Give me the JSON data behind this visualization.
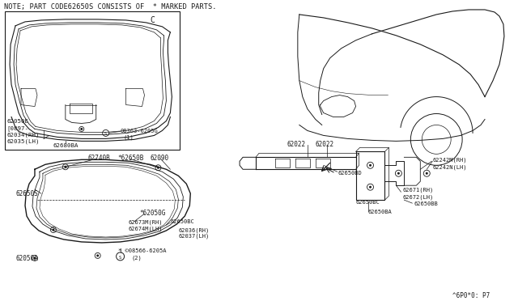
{
  "bg_color": "#ffffff",
  "line_color": "#1a1a1a",
  "text_color": "#1a1a1a",
  "title_note": "NOTE; PART CODE62650S CONSISTS OF  * MARKED PARTS.",
  "footer_text": "^6P0*0: P7",
  "box_label": "C",
  "fig_width": 6.4,
  "fig_height": 3.72,
  "dpi": 100
}
